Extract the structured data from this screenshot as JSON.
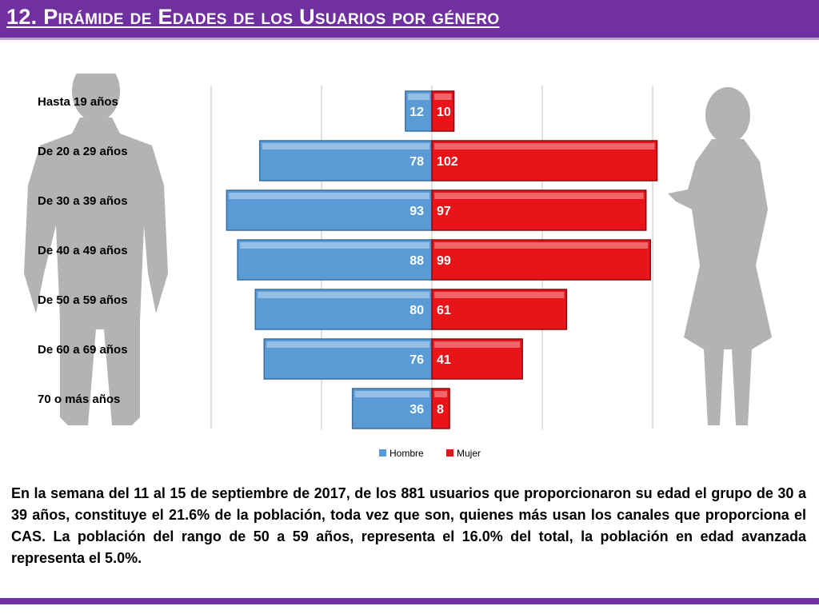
{
  "slide": {
    "title": "12. Pirámide de Edades de los Usuarios por género",
    "summary": "En la semana del 11 al 15  de septiembre de 2017, de los 881 usuarios  que proporcionaron su edad el grupo de 30 a 39 años, constituye el 21.6% de la población, toda vez que son, quienes más usan los canales que proporciona el CAS. La población del rango de 50 a 59 años, representa el 16.0% del total, la población en edad avanzada representa el 5.0%."
  },
  "colors": {
    "accent": "#7030a0",
    "hombre": "#5b9bd5",
    "mujer": "#e8141a"
  },
  "chart_data": {
    "type": "bar",
    "orientation": "horizontal-population-pyramid",
    "categories": [
      "Hasta 19 años",
      "De 20 a 29 años",
      "De 30 a 39 años",
      "De 40 a 49 años",
      "De 50 a 59 años",
      "De 60 a 69 años",
      "70 o más años"
    ],
    "series": [
      {
        "name": "Hombre",
        "values": [
          12,
          78,
          93,
          88,
          80,
          76,
          36
        ],
        "side": "left"
      },
      {
        "name": "Mujer",
        "values": [
          10,
          102,
          97,
          99,
          61,
          41,
          8
        ],
        "side": "right"
      }
    ],
    "xlim": [
      -100,
      100
    ],
    "grid": true,
    "legend": "bottom-center"
  }
}
